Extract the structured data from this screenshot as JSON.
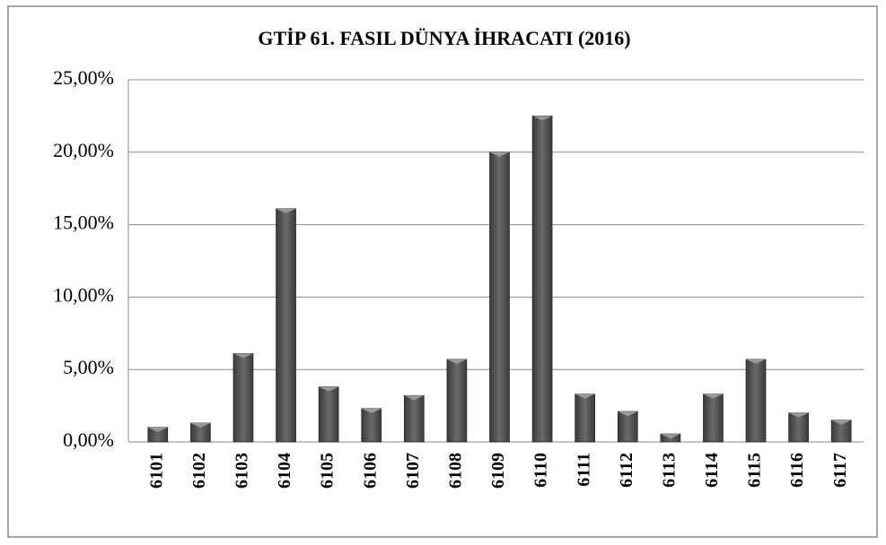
{
  "chart_data": {
    "type": "bar",
    "title": "GTİP 61. FASIL  DÜNYA İHRACATI (2016)",
    "categories": [
      "6101",
      "6102",
      "6103",
      "6104",
      "6105",
      "6106",
      "6107",
      "6108",
      "6109",
      "6110",
      "6111",
      "6112",
      "6113",
      "6114",
      "6115",
      "6116",
      "6117"
    ],
    "values": [
      1.0,
      1.3,
      6.1,
      16.1,
      3.8,
      2.3,
      3.2,
      5.7,
      20.0,
      22.5,
      3.3,
      2.1,
      0.55,
      3.3,
      5.7,
      2.0,
      1.5
    ],
    "color": "#4d4d4d",
    "ylim": [
      0,
      25
    ],
    "yticks": [
      {
        "value": 0,
        "label": "0,00%"
      },
      {
        "value": 5,
        "label": "5,00%"
      },
      {
        "value": 10,
        "label": "10,00%"
      },
      {
        "value": 15,
        "label": "15,00%"
      },
      {
        "value": 20,
        "label": "20,00%"
      },
      {
        "value": 25,
        "label": "25,00%"
      }
    ],
    "grid": true
  }
}
